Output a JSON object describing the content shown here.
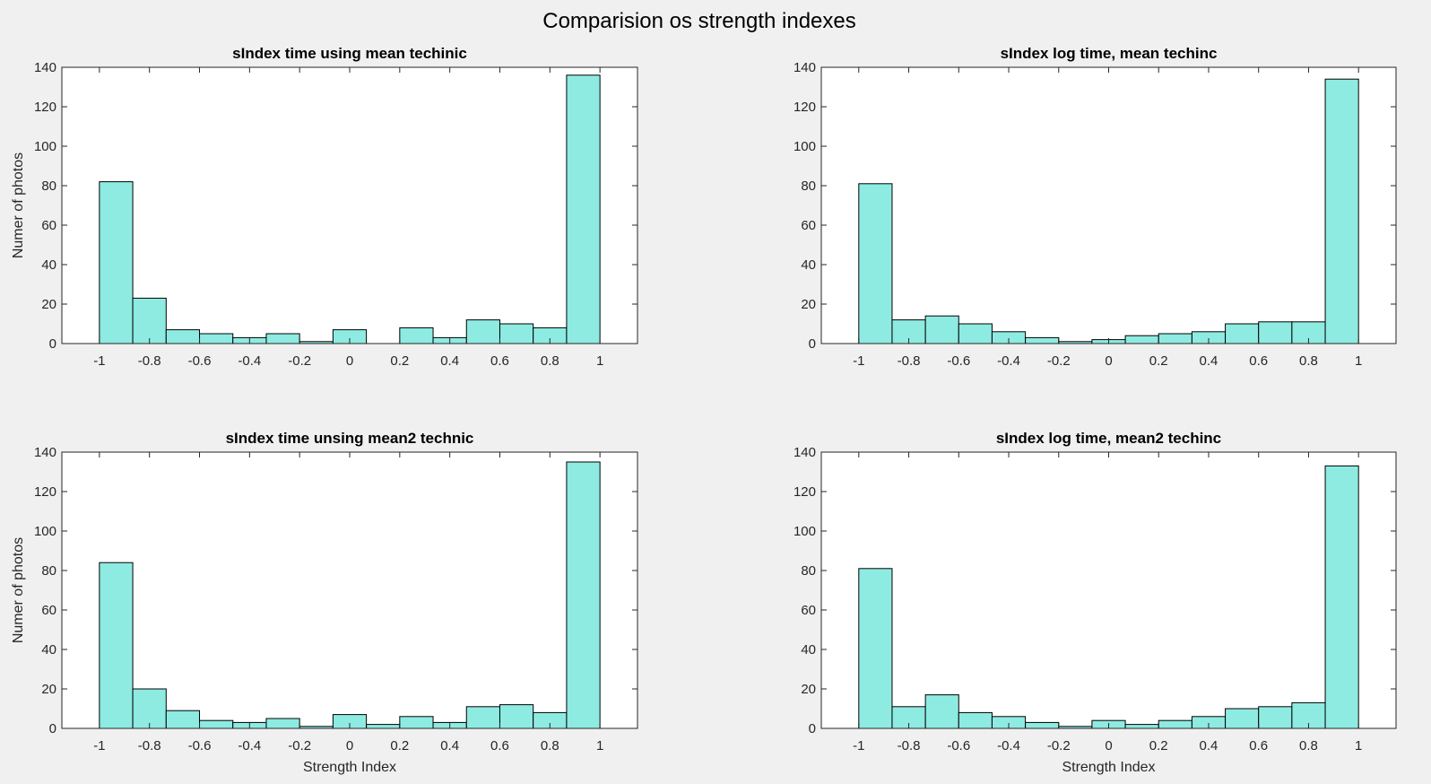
{
  "figure": {
    "title": "Comparision os strength indexes"
  },
  "colors": {
    "bar_fill": "#8eebe1",
    "bar_edge": "#000000",
    "axes_bg": "#ffffff",
    "figure_bg": "#f0f0f0"
  },
  "chart_data": [
    {
      "type": "bar",
      "title": "sIndex time using mean techinic",
      "xlabel": "",
      "ylabel": "Numer of photos",
      "xlim": [
        -1.15,
        1.15
      ],
      "ylim": [
        0,
        140
      ],
      "xticks": [
        "-1",
        "-0.8",
        "-0.6",
        "-0.4",
        "-0.2",
        "0",
        "0.2",
        "0.4",
        "0.6",
        "0.8",
        "1"
      ],
      "yticks": [
        "0",
        "20",
        "40",
        "60",
        "80",
        "100",
        "120",
        "140"
      ],
      "bin_edges": [
        -1,
        -0.8667,
        -0.7333,
        -0.6,
        -0.4667,
        -0.3333,
        -0.2,
        -0.0667,
        0.0667,
        0.2,
        0.3333,
        0.4667,
        0.6,
        0.7333,
        0.8667,
        1
      ],
      "values": [
        82,
        23,
        7,
        5,
        3,
        5,
        1,
        7,
        0,
        8,
        3,
        12,
        10,
        8,
        136
      ]
    },
    {
      "type": "bar",
      "title": "sIndex log time, mean techinc",
      "xlabel": "",
      "ylabel": "",
      "xlim": [
        -1.15,
        1.15
      ],
      "ylim": [
        0,
        140
      ],
      "xticks": [
        "-1",
        "-0.8",
        "-0.6",
        "-0.4",
        "-0.2",
        "0",
        "0.2",
        "0.4",
        "0.6",
        "0.8",
        "1"
      ],
      "yticks": [
        "0",
        "20",
        "40",
        "60",
        "80",
        "100",
        "120",
        "140"
      ],
      "bin_edges": [
        -1,
        -0.8667,
        -0.7333,
        -0.6,
        -0.4667,
        -0.3333,
        -0.2,
        -0.0667,
        0.0667,
        0.2,
        0.3333,
        0.4667,
        0.6,
        0.7333,
        0.8667,
        1
      ],
      "values": [
        81,
        12,
        14,
        10,
        6,
        3,
        1,
        2,
        4,
        5,
        6,
        10,
        11,
        11,
        134
      ]
    },
    {
      "type": "bar",
      "title": "sIndex time unsing mean2 technic",
      "xlabel": "Strength Index",
      "ylabel": "Numer of photos",
      "xlim": [
        -1.15,
        1.15
      ],
      "ylim": [
        0,
        140
      ],
      "xticks": [
        "-1",
        "-0.8",
        "-0.6",
        "-0.4",
        "-0.2",
        "0",
        "0.2",
        "0.4",
        "0.6",
        "0.8",
        "1"
      ],
      "yticks": [
        "0",
        "20",
        "40",
        "60",
        "80",
        "100",
        "120",
        "140"
      ],
      "bin_edges": [
        -1,
        -0.8667,
        -0.7333,
        -0.6,
        -0.4667,
        -0.3333,
        -0.2,
        -0.0667,
        0.0667,
        0.2,
        0.3333,
        0.4667,
        0.6,
        0.7333,
        0.8667,
        1
      ],
      "values": [
        84,
        20,
        9,
        4,
        3,
        5,
        1,
        7,
        2,
        6,
        3,
        11,
        12,
        8,
        135
      ]
    },
    {
      "type": "bar",
      "title": "sIndex log time, mean2 techinc",
      "xlabel": "Strength Index",
      "ylabel": "",
      "xlim": [
        -1.15,
        1.15
      ],
      "ylim": [
        0,
        140
      ],
      "xticks": [
        "-1",
        "-0.8",
        "-0.6",
        "-0.4",
        "-0.2",
        "0",
        "0.2",
        "0.4",
        "0.6",
        "0.8",
        "1"
      ],
      "yticks": [
        "0",
        "20",
        "40",
        "60",
        "80",
        "100",
        "120",
        "140"
      ],
      "bin_edges": [
        -1,
        -0.8667,
        -0.7333,
        -0.6,
        -0.4667,
        -0.3333,
        -0.2,
        -0.0667,
        0.0667,
        0.2,
        0.3333,
        0.4667,
        0.6,
        0.7333,
        0.8667,
        1
      ],
      "values": [
        81,
        11,
        17,
        8,
        6,
        3,
        1,
        4,
        2,
        4,
        6,
        10,
        11,
        13,
        133
      ]
    }
  ]
}
